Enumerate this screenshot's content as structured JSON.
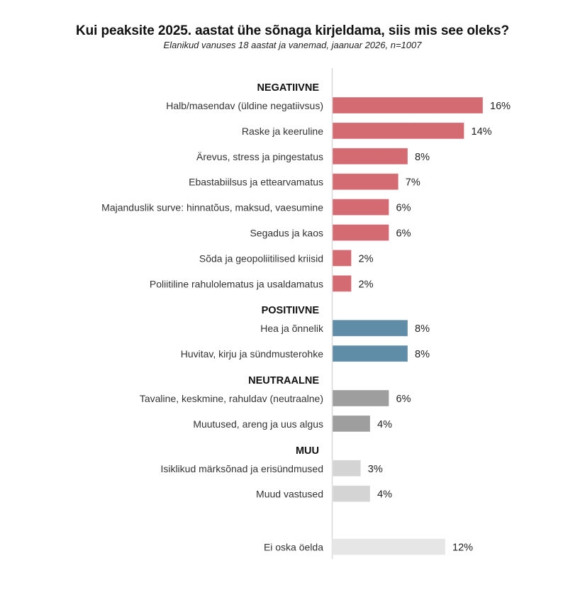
{
  "chart_data": {
    "type": "bar",
    "orientation": "horizontal",
    "title": "Kui peaksite 2025. aastat ühe sõnaga kirjeldama, siis mis see oleks?",
    "subtitle": "Elanikud vanuses 18 aastat ja vanemad, jaanuar 2026, n=1007",
    "xlabel": "",
    "ylabel": "",
    "xlim": [
      0,
      16
    ],
    "grid": false,
    "legend": "none",
    "unit": "%",
    "groups": [
      {
        "name": "NEGATIIVNE",
        "color": "#d46a72",
        "items": [
          {
            "label": "Halb/masendav (üldine negatiivsus)",
            "value": 16,
            "display": "16%"
          },
          {
            "label": "Raske ja keeruline",
            "value": 14,
            "display": "14%"
          },
          {
            "label": "Ärevus, stress ja pingestatus",
            "value": 8,
            "display": "8%"
          },
          {
            "label": "Ebastabiilsus ja ettearvamatus",
            "value": 7,
            "display": "7%"
          },
          {
            "label": "Majanduslik surve: hinnatõus, maksud, vaesumine",
            "value": 6,
            "display": "6%"
          },
          {
            "label": "Segadus ja kaos",
            "value": 6,
            "display": "6%"
          },
          {
            "label": "Sõda ja geopoliitilised kriisid",
            "value": 2,
            "display": "2%"
          },
          {
            "label": "Poliitiline rahulolematus ja usaldamatus",
            "value": 2,
            "display": "2%"
          }
        ]
      },
      {
        "name": "POSITIIVNE",
        "color": "#5f8ca7",
        "items": [
          {
            "label": "Hea ja õnnelik",
            "value": 8,
            "display": "8%"
          },
          {
            "label": "Huvitav, kirju ja sündmusterohke",
            "value": 8,
            "display": "8%"
          }
        ]
      },
      {
        "name": "NEUTRAALNE",
        "color": "#9e9e9e",
        "items": [
          {
            "label": "Tavaline, keskmine, rahuldav (neutraalne)",
            "value": 6,
            "display": "6%"
          },
          {
            "label": "Muutused, areng ja uus algus",
            "value": 4,
            "display": "4%"
          }
        ]
      },
      {
        "name": "MUU",
        "color": "#d4d4d4",
        "items": [
          {
            "label": "Isiklikud märksõnad ja erisündmused",
            "value": 3,
            "display": "3%"
          },
          {
            "label": "Muud vastused",
            "value": 4,
            "display": "4%"
          }
        ]
      },
      {
        "name": "",
        "color": "#e6e6e6",
        "items": [
          {
            "label": "Ei oska öelda",
            "value": 12,
            "display": "12%"
          }
        ]
      }
    ]
  },
  "colors": {
    "axis": "#d9d9d9",
    "text": "#333333"
  }
}
